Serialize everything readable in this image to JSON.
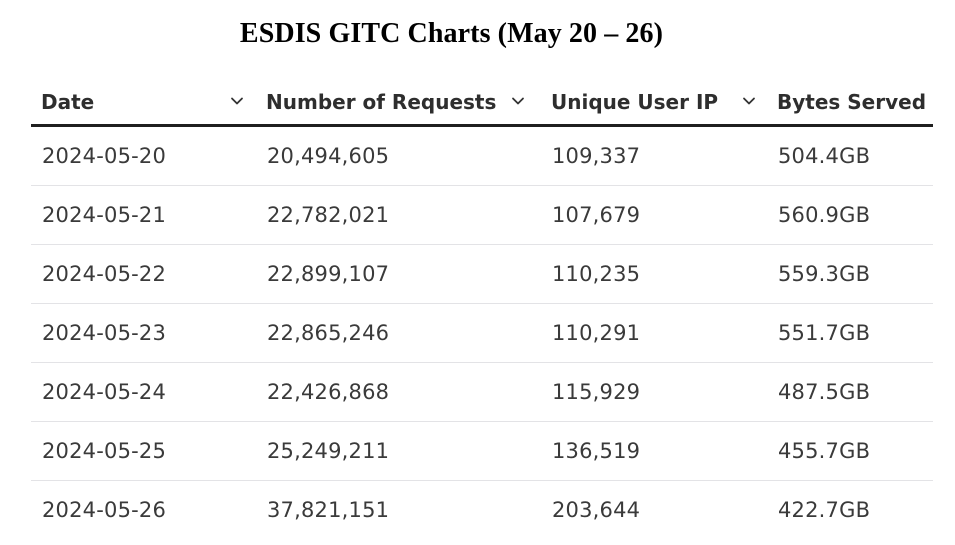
{
  "title": "ESDIS GITC Charts (May 20 – 26)",
  "table": {
    "columns": [
      {
        "label": "Date",
        "sortable": true
      },
      {
        "label": "Number of Requests",
        "sortable": true
      },
      {
        "label": "Unique User IP",
        "sortable": true
      },
      {
        "label": "Bytes Served",
        "sortable": false
      }
    ],
    "rows": [
      [
        "2024-05-20",
        "20,494,605",
        "109,337",
        "504.4GB"
      ],
      [
        "2024-05-21",
        "22,782,021",
        "107,679",
        "560.9GB"
      ],
      [
        "2024-05-22",
        "22,899,107",
        "110,235",
        "559.3GB"
      ],
      [
        "2024-05-23",
        "22,865,246",
        "110,291",
        "551.7GB"
      ],
      [
        "2024-05-24",
        "22,426,868",
        "115,929",
        "487.5GB"
      ],
      [
        "2024-05-25",
        "25,249,211",
        "136,519",
        "455.7GB"
      ],
      [
        "2024-05-26",
        "37,821,151",
        "203,644",
        "422.7GB"
      ]
    ]
  },
  "colors": {
    "header_border": "#1f1f1f",
    "row_divider": "#e3e3e6",
    "text": "#3a3a3a"
  }
}
